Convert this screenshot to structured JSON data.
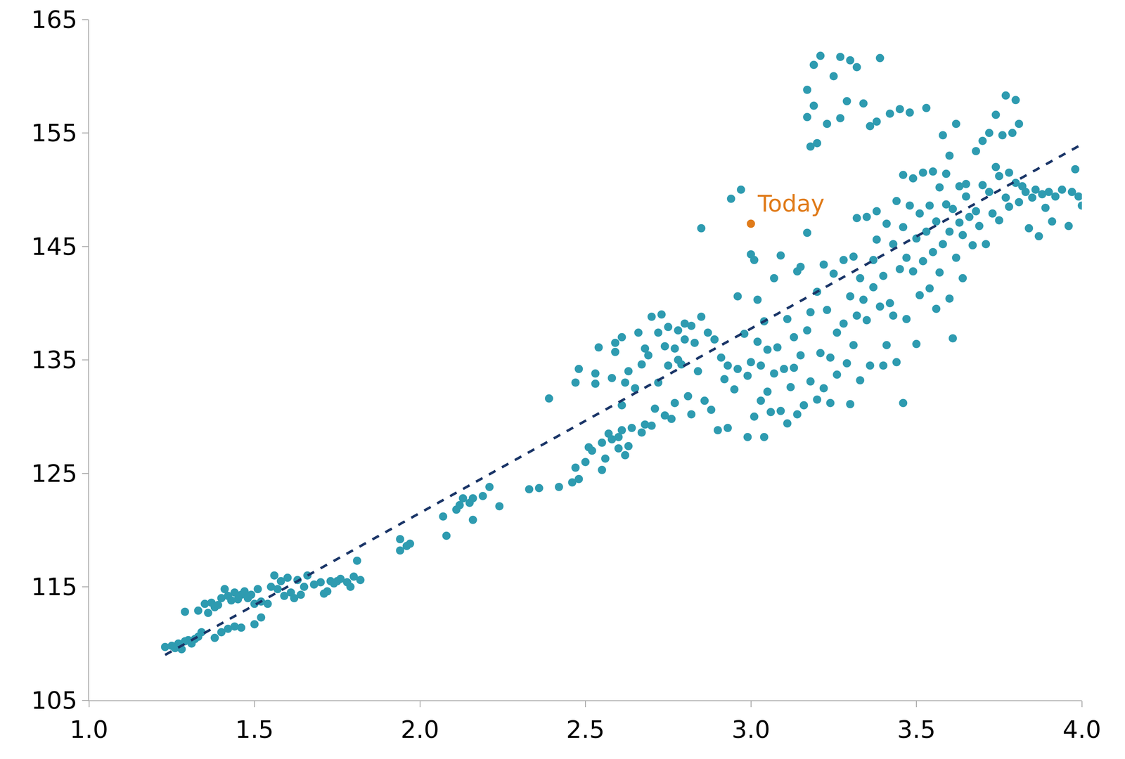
{
  "chart_data": {
    "type": "scatter",
    "grid": false,
    "xlim": [
      1.0,
      4.0
    ],
    "xticks": [
      {
        "value": 1.0,
        "label": "1.0"
      },
      {
        "value": 1.5,
        "label": "1.5"
      },
      {
        "value": 2.0,
        "label": "2.0"
      },
      {
        "value": 2.5,
        "label": "2.5"
      },
      {
        "value": 3.0,
        "label": "3.0"
      },
      {
        "value": 3.5,
        "label": "3.5"
      },
      {
        "value": 4.0,
        "label": "4.0"
      }
    ],
    "ylim": [
      105,
      165
    ],
    "yticks": [
      105,
      115,
      125,
      135,
      145,
      155,
      165
    ],
    "series": [
      {
        "type": "scatter",
        "marker": "circle",
        "color": "#2e9bb0",
        "x": [
          1.23,
          1.25,
          1.27,
          1.28,
          1.29,
          1.3,
          1.31,
          1.32,
          1.33,
          1.29,
          1.26,
          1.34,
          1.35,
          1.37,
          1.38,
          1.4,
          1.41,
          1.42,
          1.43,
          1.44,
          1.45,
          1.46,
          1.47,
          1.48,
          1.49,
          1.5,
          1.51,
          1.52,
          1.33,
          1.36,
          1.39,
          1.38,
          1.4,
          1.42,
          1.44,
          1.46,
          1.5,
          1.52,
          1.54,
          1.55,
          1.56,
          1.58,
          1.6,
          1.61,
          1.62,
          1.63,
          1.64,
          1.65,
          1.66,
          1.68,
          1.7,
          1.72,
          1.73,
          1.74,
          1.75,
          1.76,
          1.78,
          1.79,
          1.8,
          1.81,
          1.82,
          1.71,
          1.57,
          1.59,
          1.94,
          1.94,
          1.96,
          1.97,
          2.07,
          2.08,
          2.11,
          2.12,
          2.13,
          2.15,
          2.16,
          2.16,
          2.19,
          2.21,
          2.24,
          2.33,
          2.36,
          2.39,
          2.42,
          2.46,
          2.47,
          2.48,
          2.47,
          2.48,
          2.5,
          2.51,
          2.52,
          2.53,
          2.53,
          2.54,
          2.55,
          2.55,
          2.56,
          2.57,
          2.58,
          2.58,
          2.59,
          2.59,
          2.6,
          2.6,
          2.61,
          2.61,
          2.61,
          2.62,
          2.62,
          2.63,
          2.63,
          2.64,
          2.65,
          2.66,
          2.67,
          2.67,
          2.68,
          2.68,
          2.69,
          2.7,
          2.7,
          2.71,
          2.72,
          2.72,
          2.73,
          2.74,
          2.74,
          2.75,
          2.75,
          2.76,
          2.77,
          2.77,
          2.78,
          2.78,
          2.79,
          2.8,
          2.8,
          2.81,
          2.82,
          2.82,
          2.83,
          2.84,
          2.85,
          2.85,
          2.86,
          2.87,
          2.88,
          2.89,
          2.9,
          2.91,
          2.92,
          2.93,
          2.93,
          2.94,
          2.95,
          2.96,
          2.96,
          2.97,
          2.98,
          2.99,
          2.99,
          3.0,
          3.0,
          3.01,
          3.01,
          3.02,
          3.02,
          3.03,
          3.03,
          3.04,
          3.04,
          3.05,
          3.05,
          3.06,
          3.07,
          3.07,
          3.08,
          3.09,
          3.09,
          3.1,
          3.11,
          3.11,
          3.12,
          3.13,
          3.13,
          3.14,
          3.14,
          3.15,
          3.15,
          3.16,
          3.17,
          3.17,
          3.17,
          3.17,
          3.18,
          3.18,
          3.18,
          3.19,
          3.19,
          3.2,
          3.2,
          3.2,
          3.21,
          3.21,
          3.22,
          3.22,
          3.23,
          3.23,
          3.24,
          3.24,
          3.25,
          3.25,
          3.26,
          3.26,
          3.27,
          3.27,
          3.28,
          3.28,
          3.29,
          3.29,
          3.3,
          3.3,
          3.3,
          3.31,
          3.31,
          3.32,
          3.32,
          3.32,
          3.33,
          3.33,
          3.34,
          3.34,
          3.35,
          3.35,
          3.36,
          3.36,
          3.37,
          3.37,
          3.38,
          3.38,
          3.38,
          3.39,
          3.39,
          3.4,
          3.4,
          3.41,
          3.41,
          3.42,
          3.42,
          3.43,
          3.43,
          3.44,
          3.44,
          3.45,
          3.45,
          3.46,
          3.46,
          3.46,
          3.47,
          3.47,
          3.48,
          3.48,
          3.49,
          3.49,
          3.5,
          3.5,
          3.51,
          3.51,
          3.52,
          3.52,
          3.53,
          3.53,
          3.54,
          3.54,
          3.55,
          3.55,
          3.56,
          3.56,
          3.57,
          3.57,
          3.58,
          3.58,
          3.59,
          3.59,
          3.6,
          3.6,
          3.6,
          3.61,
          3.61,
          3.62,
          3.62,
          3.63,
          3.63,
          3.64,
          3.64,
          3.65,
          3.65,
          3.66,
          3.67,
          3.68,
          3.68,
          3.69,
          3.7,
          3.7,
          3.71,
          3.72,
          3.72,
          3.73,
          3.74,
          3.74,
          3.75,
          3.75,
          3.76,
          3.77,
          3.77,
          3.78,
          3.78,
          3.79,
          3.8,
          3.8,
          3.81,
          3.81,
          3.82,
          3.83,
          3.84,
          3.85,
          3.86,
          3.87,
          3.88,
          3.89,
          3.9,
          3.91,
          3.92,
          3.94,
          3.96,
          3.97,
          3.98,
          3.99,
          4.0
        ],
        "values": [
          109.7,
          109.8,
          110,
          109.5,
          110.2,
          110.3,
          110,
          110.4,
          110.6,
          112.8,
          109.6,
          111,
          113.5,
          113.6,
          113.2,
          114,
          114.8,
          114.2,
          113.8,
          114.5,
          113.9,
          114.3,
          114.6,
          114,
          114.3,
          113.5,
          114.8,
          113.7,
          112.9,
          112.7,
          113.4,
          110.5,
          111,
          111.3,
          111.5,
          111.4,
          111.7,
          112.3,
          113.5,
          115,
          116,
          115.5,
          115.8,
          114.5,
          114,
          115.6,
          114.3,
          115,
          116,
          115.2,
          115.4,
          114.6,
          115.5,
          115.3,
          115.5,
          115.7,
          115.4,
          115,
          115.9,
          117.3,
          115.6,
          114.4,
          114.8,
          114.2,
          118.2,
          119.2,
          118.6,
          118.8,
          121.2,
          119.5,
          121.8,
          122.2,
          122.8,
          122.4,
          120.9,
          122.8,
          123,
          123.8,
          122.1,
          123.6,
          123.7,
          131.6,
          123.8,
          124.2,
          125.5,
          124.5,
          133,
          134.2,
          126,
          127.3,
          127,
          133.8,
          132.9,
          136.1,
          125.3,
          127.7,
          126.3,
          128.5,
          128,
          133.4,
          135.7,
          136.5,
          128.2,
          127.2,
          128.8,
          131,
          137,
          126.6,
          133,
          134,
          127.4,
          129,
          132.5,
          137.4,
          128.6,
          134.6,
          129.3,
          136,
          135.4,
          138.8,
          129.2,
          130.7,
          133,
          137.4,
          139,
          136.2,
          130.1,
          137.9,
          134.5,
          129.8,
          136,
          131.2,
          137.6,
          135,
          134.6,
          138.2,
          136.8,
          131.8,
          138,
          130.2,
          136.5,
          134,
          138.8,
          146.6,
          131.4,
          137.4,
          130.6,
          136.8,
          128.8,
          135.2,
          133.3,
          134.5,
          129,
          149.2,
          132.4,
          140.6,
          134.2,
          150,
          137.3,
          128.2,
          133.6,
          144.3,
          134.8,
          130,
          143.8,
          136.6,
          140.3,
          131.4,
          134.5,
          128.2,
          138.4,
          132.2,
          135.9,
          130.4,
          133.8,
          142.2,
          136.1,
          144.2,
          130.5,
          134.2,
          129.4,
          138.6,
          132.6,
          137,
          134.3,
          130.2,
          142.8,
          135.4,
          143.2,
          131,
          137.6,
          146.2,
          156.4,
          158.8,
          133.1,
          139.2,
          153.8,
          161,
          157.4,
          131.5,
          141,
          154.1,
          135.6,
          161.8,
          143.4,
          132.5,
          139.4,
          155.8,
          135.2,
          131.2,
          142.6,
          160,
          137.4,
          133.7,
          156.3,
          161.7,
          143.8,
          138.2,
          134.7,
          157.8,
          131.1,
          140.6,
          161.4,
          144.1,
          136.3,
          138.9,
          147.5,
          160.8,
          142.2,
          133.2,
          140.3,
          157.6,
          147.6,
          138.5,
          134.5,
          155.6,
          143.8,
          141.4,
          145.6,
          148.1,
          156,
          139.7,
          161.6,
          134.5,
          142.4,
          136.3,
          147,
          140,
          156.7,
          145.2,
          138.9,
          149,
          134.8,
          143,
          157.1,
          131.2,
          146.7,
          151.3,
          144,
          138.6,
          148.6,
          156.8,
          142.8,
          151,
          136.4,
          145.7,
          147.9,
          140.7,
          143.7,
          151.5,
          146.3,
          157.2,
          141.3,
          148.6,
          144.5,
          151.6,
          139.5,
          147.2,
          142.7,
          150.2,
          145.2,
          154.8,
          148.7,
          151.4,
          140.4,
          146.3,
          153,
          136.9,
          148.3,
          144,
          155.8,
          147.1,
          150.3,
          146,
          142.2,
          150.5,
          149.4,
          147.6,
          145.1,
          153.4,
          148.1,
          146.8,
          150.4,
          154.3,
          145.2,
          149.8,
          155,
          147.9,
          152,
          156.6,
          151.2,
          147.3,
          154.8,
          149.3,
          158.3,
          151.5,
          148.5,
          155,
          150.6,
          157.9,
          148.9,
          155.8,
          150.3,
          149.8,
          146.6,
          149.3,
          150,
          145.9,
          149.6,
          148.4,
          149.8,
          147.2,
          149.4,
          150,
          146.8,
          149.8,
          151.8,
          149.4,
          148.6
        ]
      },
      {
        "type": "line",
        "line_style": "dashed",
        "color": "#1b3668",
        "x": [
          1.23,
          4.0
        ],
        "values": [
          109,
          154
        ]
      },
      {
        "type": "scatter",
        "marker": "circle",
        "color": "#e07b1a",
        "x": [
          3.0
        ],
        "values": [
          147
        ]
      }
    ],
    "annotations": [
      {
        "text": "Today",
        "x": 3.0,
        "y": 147,
        "color": "#e07b1a"
      }
    ]
  }
}
